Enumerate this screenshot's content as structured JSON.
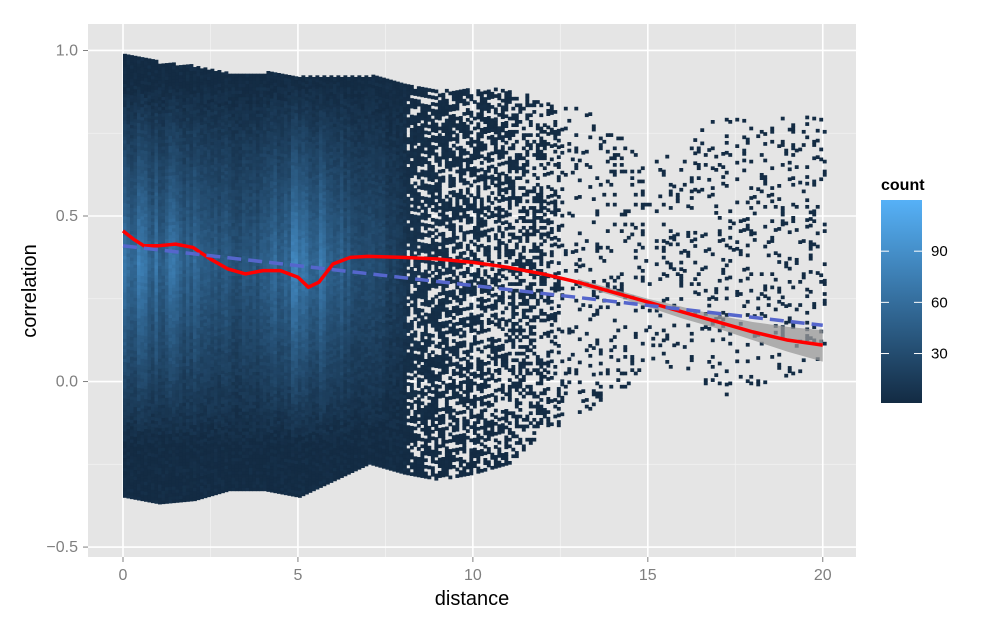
{
  "chart_data": {
    "type": "heatmap",
    "xlabel": "distance",
    "ylabel": "correlation",
    "xlim": [
      -1,
      20.95
    ],
    "ylim": [
      -0.53,
      1.08
    ],
    "x_ticks": [
      {
        "value": 0,
        "label": "0"
      },
      {
        "value": 5,
        "label": "5"
      },
      {
        "value": 10,
        "label": "10"
      },
      {
        "value": 15,
        "label": "15"
      },
      {
        "value": 20,
        "label": "20"
      }
    ],
    "y_ticks": [
      {
        "value": -0.5,
        "label": "−0.5"
      },
      {
        "value": 0.0,
        "label": "0.0"
      },
      {
        "value": 0.5,
        "label": "0.5"
      },
      {
        "value": 1.0,
        "label": "1.0"
      }
    ],
    "grid": true,
    "legend": {
      "title": "count",
      "placement": "right",
      "range": [
        1,
        120
      ],
      "ticks": [
        {
          "value": 30,
          "label": "30"
        },
        {
          "value": 60,
          "label": "60"
        },
        {
          "value": 90,
          "label": "90"
        }
      ],
      "low_color": "#132B43",
      "high_color": "#56B1F7"
    },
    "colors": {
      "panel_background": "#E5E5E5",
      "grid_major": "#FFFFFF",
      "grid_minor": "#F2F2F2",
      "loess_line": "#FF0000",
      "linear_line": "#5566CC",
      "confidence_band": "#999999"
    },
    "density_profile": {
      "note_free_columns": [
        {
          "x": 0.0,
          "ymin": -0.35,
          "ymax": 0.99,
          "intensity": 0.55
        },
        {
          "x": 1.0,
          "ymin": -0.37,
          "ymax": 0.96,
          "intensity": 0.5
        },
        {
          "x": 2.0,
          "ymin": -0.36,
          "ymax": 0.95,
          "intensity": 0.45
        },
        {
          "x": 3.0,
          "ymin": -0.33,
          "ymax": 0.93,
          "intensity": 0.35
        },
        {
          "x": 4.0,
          "ymin": -0.33,
          "ymax": 0.93,
          "intensity": 0.35
        },
        {
          "x": 5.0,
          "ymin": -0.35,
          "ymax": 0.92,
          "intensity": 0.6
        },
        {
          "x": 6.0,
          "ymin": -0.3,
          "ymax": 0.92,
          "intensity": 0.45
        },
        {
          "x": 7.0,
          "ymin": -0.25,
          "ymax": 0.92,
          "intensity": 0.25
        },
        {
          "x": 8.0,
          "ymin": -0.28,
          "ymax": 0.9,
          "intensity": 0.12
        },
        {
          "x": 9.0,
          "ymin": -0.3,
          "ymax": 0.88,
          "intensity": 0.06
        },
        {
          "x": 10.0,
          "ymin": -0.28,
          "ymax": 0.88,
          "intensity": 0.04
        },
        {
          "x": 11.0,
          "ymin": -0.25,
          "ymax": 0.88,
          "intensity": 0.03
        },
        {
          "x": 12.0,
          "ymin": -0.15,
          "ymax": 0.85,
          "intensity": 0.03
        },
        {
          "x": 13.5,
          "ymin": -0.1,
          "ymax": 0.8,
          "intensity": 0.01
        },
        {
          "x": 15.0,
          "ymin": 0.05,
          "ymax": 0.65,
          "intensity": 0.03
        },
        {
          "x": 17.0,
          "ymin": -0.05,
          "ymax": 0.8,
          "intensity": 0.01
        },
        {
          "x": 20.0,
          "ymin": 0.05,
          "ymax": 0.8,
          "intensity": 0.01
        }
      ]
    },
    "series": [
      {
        "kind": "loess",
        "x": [
          0,
          0.3,
          0.6,
          1.0,
          1.5,
          2.0,
          2.5,
          3.0,
          3.5,
          4.0,
          4.5,
          5.0,
          5.3,
          5.6,
          6.0,
          6.5,
          7.0,
          8.0,
          9.0,
          10.0,
          11.0,
          12.0,
          13.0,
          14.0,
          15.0,
          16.0,
          17.0,
          18.0,
          19.0,
          20.0
        ],
        "y": [
          0.455,
          0.43,
          0.41,
          0.41,
          0.415,
          0.405,
          0.37,
          0.34,
          0.325,
          0.335,
          0.335,
          0.315,
          0.285,
          0.3,
          0.355,
          0.375,
          0.378,
          0.375,
          0.37,
          0.36,
          0.345,
          0.325,
          0.3,
          0.27,
          0.24,
          0.21,
          0.18,
          0.15,
          0.125,
          0.11
        ]
      },
      {
        "kind": "linear",
        "x": [
          0,
          20
        ],
        "y": [
          0.41,
          0.17
        ]
      }
    ],
    "confidence_band": {
      "x": [
        13,
        14,
        15,
        16,
        17,
        18,
        19,
        20
      ],
      "lower": [
        0.29,
        0.26,
        0.225,
        0.19,
        0.16,
        0.125,
        0.09,
        0.06
      ],
      "upper": [
        0.31,
        0.28,
        0.25,
        0.225,
        0.2,
        0.18,
        0.165,
        0.155
      ]
    }
  }
}
